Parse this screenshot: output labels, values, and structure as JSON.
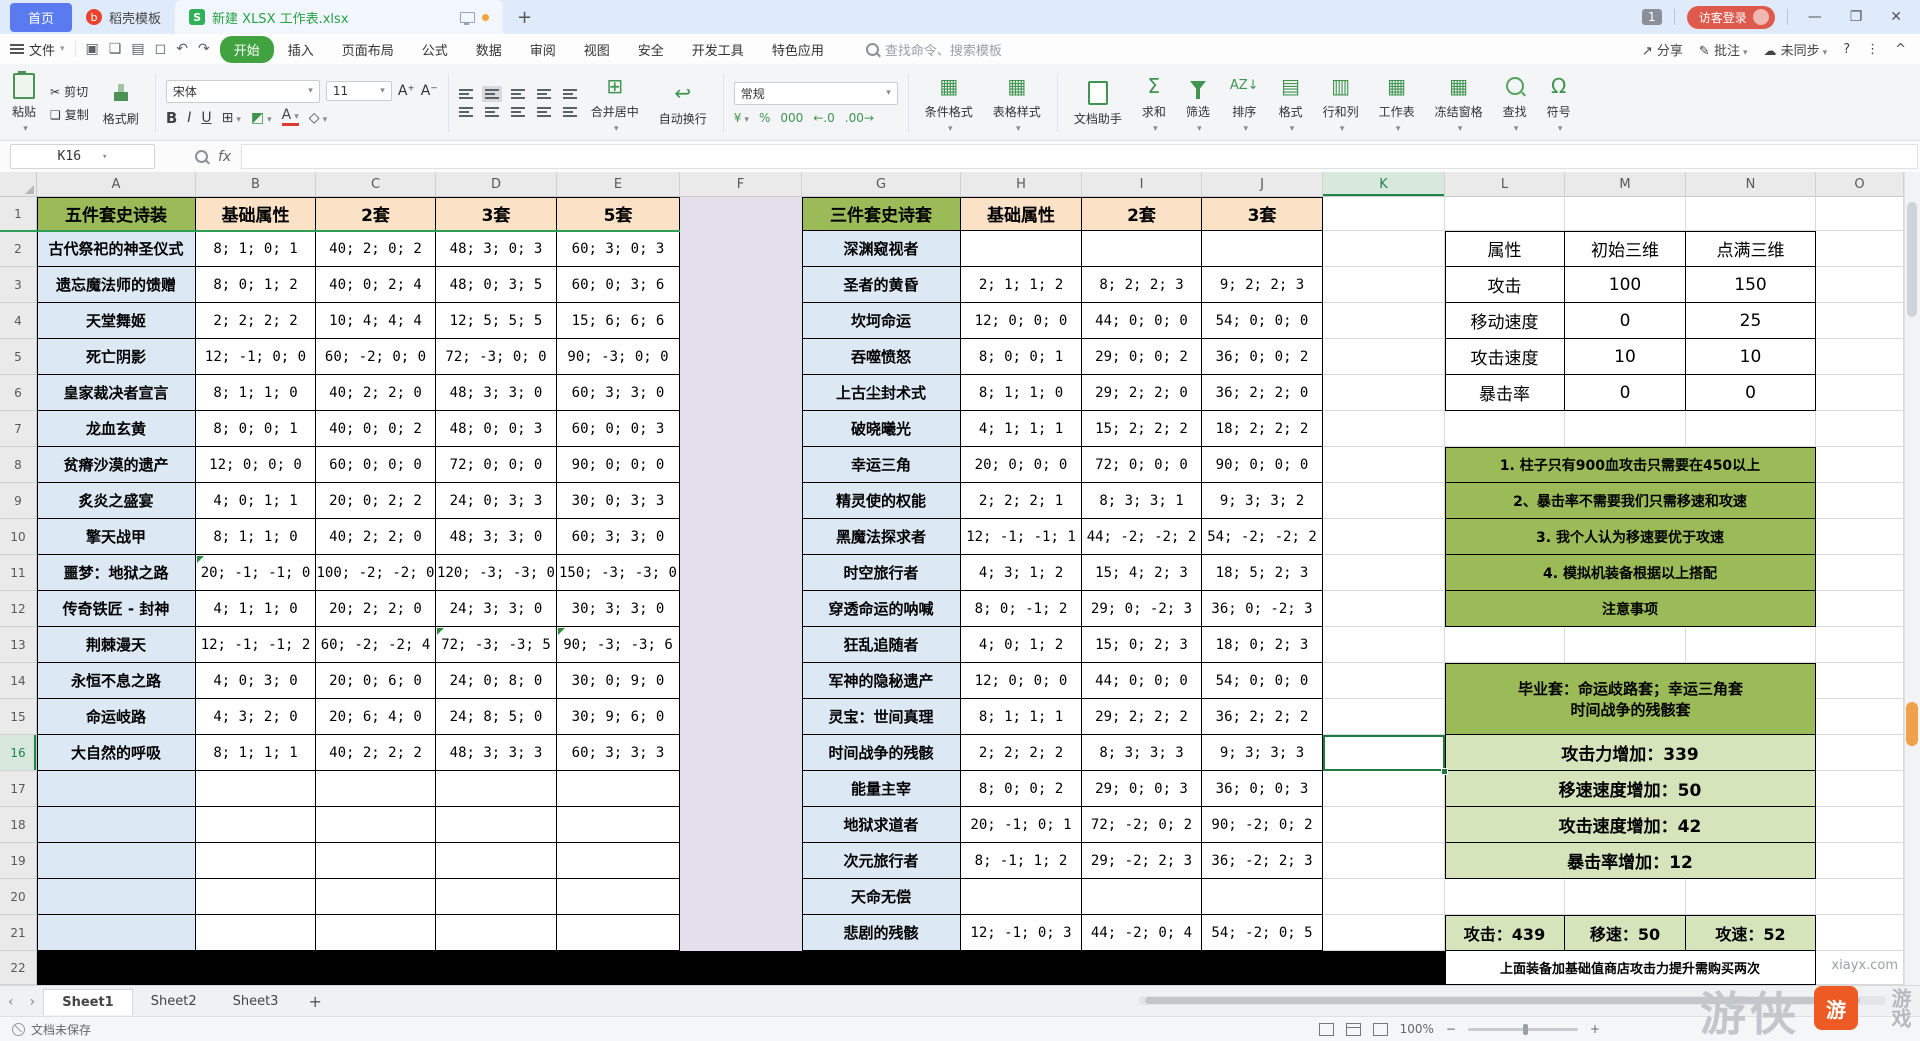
{
  "titlebar": {
    "home_tab": "首页",
    "template_tab": "稻壳模板",
    "template_icon": "b",
    "doc_tab": "新建 XLSX 工作表.xlsx",
    "doc_icon": "S",
    "new_tab": "+",
    "badge": "1",
    "login": "访客登录",
    "minimize": "—",
    "restore": "❐",
    "close": "✕"
  },
  "menubar": {
    "file": "文件",
    "items": [
      "开始",
      "插入",
      "页面布局",
      "公式",
      "数据",
      "审阅",
      "视图",
      "安全",
      "开发工具",
      "特色应用"
    ],
    "active_item": "开始",
    "search_placeholder": "查找命令、搜索模板",
    "share": "分享",
    "comment": "批注",
    "unsynced": "未同步",
    "help": "?",
    "more": "⋮",
    "collapse": "^"
  },
  "ribbon": {
    "paste": "粘贴",
    "cut": "剪切",
    "copy": "复制",
    "format_painter": "格式刷",
    "font_name": "宋体",
    "font_size": "11",
    "font_bigger": "A+",
    "font_smaller": "A-",
    "bold": "B",
    "italic": "I",
    "underline": "U",
    "merge_center": "合并居中",
    "wrap_text": "自动换行",
    "number_format": "常规",
    "currency": "¥",
    "percent": "%",
    "thousands": "000",
    "dec_less": "←.0",
    "dec_more": ".00→",
    "conditional_format": "条件格式",
    "table_style": "表格样式",
    "doc_assistant": "文档助手",
    "sum": "求和",
    "filter": "筛选",
    "sort": "排序",
    "format": "格式",
    "rows_cols": "行和列",
    "worksheet": "工作表",
    "freeze": "冻结窗格",
    "find": "查找",
    "symbol": "符号",
    "sum_glyph": "Σ",
    "symbol_glyph": "Ω",
    "sort_glyph": "AZ↓",
    "border_glyph": "⊞",
    "fill_glyph": "◩",
    "clear_glyph": "◇",
    "merge_glyph": "⊞",
    "wrap_glyph": "↩",
    "style1_glyph": "▦",
    "style2_glyph": "▦",
    "fmt_glyph": "▤",
    "rc_glyph": "▥",
    "ws_glyph": "▦",
    "freeze_glyph": "▦"
  },
  "quick_icons": [
    "▣",
    "❏",
    "▤",
    "◻",
    "↶",
    "↷"
  ],
  "formula_bar": {
    "name_box": "K16",
    "fx": "fx"
  },
  "grid": {
    "column_letters": [
      "A",
      "B",
      "C",
      "D",
      "E",
      "F",
      "G",
      "H",
      "I",
      "J",
      "K",
      "L",
      "M",
      "N",
      "O"
    ],
    "row_numbers": [
      "1",
      "2",
      "3",
      "4",
      "5",
      "6",
      "7",
      "8",
      "9",
      "10",
      "11",
      "12",
      "13",
      "14",
      "15",
      "16",
      "17",
      "18",
      "19",
      "20",
      "21",
      "22"
    ],
    "selected_cell": "K16",
    "selected_col": "K",
    "selected_row": 16
  },
  "left_table": {
    "headers": [
      "五件套史诗装",
      "基础属性",
      "2套",
      "3套",
      "5套"
    ],
    "rows": [
      {
        "name": "古代祭祀的神圣仪式",
        "values": [
          "8; 1; 0; 1",
          "40; 2; 0; 2",
          "48; 3; 0; 3",
          "60; 3; 0; 3"
        ]
      },
      {
        "name": "遗忘魔法师的馈赠",
        "values": [
          "8; 0; 1; 2",
          "40; 0; 2; 4",
          "48; 0; 3; 5",
          "60; 0; 3; 6"
        ]
      },
      {
        "name": "天堂舞姬",
        "values": [
          "2; 2; 2; 2",
          "10; 4; 4; 4",
          "12; 5; 5; 5",
          "15; 6; 6; 6"
        ]
      },
      {
        "name": "死亡阴影",
        "values": [
          "12; -1; 0; 0",
          "60; -2; 0; 0",
          "72; -3; 0; 0",
          "90; -3; 0; 0"
        ]
      },
      {
        "name": "皇家裁决者宣言",
        "values": [
          "8; 1; 1; 0",
          "40; 2; 2; 0",
          "48; 3; 3; 0",
          "60; 3; 3; 0"
        ]
      },
      {
        "name": "龙血玄黄",
        "values": [
          "8; 0; 0; 1",
          "40; 0; 0; 2",
          "48; 0; 0; 3",
          "60; 0; 0; 3"
        ]
      },
      {
        "name": "贫瘠沙漠的遗产",
        "values": [
          "12; 0; 0; 0",
          "60; 0; 0; 0",
          "72; 0; 0; 0",
          "90; 0; 0; 0"
        ]
      },
      {
        "name": "炙炎之盛宴",
        "values": [
          "4; 0; 1; 1",
          "20; 0; 2; 2",
          "24; 0; 3; 3",
          "30; 0; 3; 3"
        ]
      },
      {
        "name": "擎天战甲",
        "values": [
          "8; 1; 1; 0",
          "40; 2; 2; 0",
          "48; 3; 3; 0",
          "60; 3; 3; 0"
        ]
      },
      {
        "name": "噩梦：地狱之路",
        "values": [
          "20; -1; -1; 0",
          "100; -2; -2; 0",
          "120; -3; -3; 0",
          "150; -3; -3; 0"
        ]
      },
      {
        "name": "传奇铁匠 - 封神",
        "values": [
          "4; 1; 1; 0",
          "20; 2; 2; 0",
          "24; 3; 3; 0",
          "30; 3; 3; 0"
        ]
      },
      {
        "name": "荆棘漫天",
        "values": [
          "12; -1; -1; 2",
          "60; -2; -2; 4",
          "72; -3; -3; 5",
          "90; -3; -3; 6"
        ]
      },
      {
        "name": "永恒不息之路",
        "values": [
          "4; 0; 3; 0",
          "20; 0; 6; 0",
          "24; 0; 8; 0",
          "30; 0; 9; 0"
        ]
      },
      {
        "name": "命运岐路",
        "values": [
          "4; 3; 2; 0",
          "20; 6; 4; 0",
          "24; 8; 5; 0",
          "30; 9; 6; 0"
        ]
      },
      {
        "name": "大自然的呼吸",
        "values": [
          "8; 1; 1; 1",
          "40; 2; 2; 2",
          "48; 3; 3; 3",
          "60; 3; 3; 3"
        ]
      },
      {
        "name": "",
        "values": [
          "",
          "",
          "",
          ""
        ]
      },
      {
        "name": "",
        "values": [
          "",
          "",
          "",
          ""
        ]
      },
      {
        "name": "",
        "values": [
          "",
          "",
          "",
          ""
        ]
      },
      {
        "name": "",
        "values": [
          "",
          "",
          "",
          ""
        ]
      },
      {
        "name": "",
        "values": [
          "",
          "",
          "",
          ""
        ]
      }
    ]
  },
  "middle_table": {
    "headers": [
      "三件套史诗套",
      "基础属性",
      "2套",
      "3套"
    ],
    "rows": [
      {
        "name": "深渊窥视者",
        "values": [
          "",
          "",
          ""
        ]
      },
      {
        "name": "圣者的黄昏",
        "values": [
          "2; 1; 1; 2",
          "8; 2; 2; 3",
          "9; 2; 2; 3"
        ]
      },
      {
        "name": "坎坷命运",
        "values": [
          "12; 0; 0; 0",
          "44; 0; 0; 0",
          "54; 0; 0; 0"
        ]
      },
      {
        "name": "吞噬愤怒",
        "values": [
          "8; 0; 0; 1",
          "29; 0; 0; 2",
          "36; 0; 0; 2"
        ]
      },
      {
        "name": "上古尘封术式",
        "values": [
          "8; 1; 1; 0",
          "29; 2; 2; 0",
          "36; 2; 2; 0"
        ]
      },
      {
        "name": "破晓曦光",
        "values": [
          "4; 1; 1; 1",
          "15; 2; 2; 2",
          "18; 2; 2; 2"
        ]
      },
      {
        "name": "幸运三角",
        "values": [
          "20; 0; 0; 0",
          "72; 0; 0; 0",
          "90; 0; 0; 0"
        ]
      },
      {
        "name": "精灵使的权能",
        "values": [
          "2; 2; 2; 1",
          "8; 3; 3; 1",
          "9; 3; 3; 2"
        ]
      },
      {
        "name": "黑魔法探求者",
        "values": [
          "12; -1; -1; 1",
          "44; -2; -2; 2",
          "54; -2; -2; 2"
        ]
      },
      {
        "name": "时空旅行者",
        "values": [
          "4; 3; 1; 2",
          "15; 4; 2; 3",
          "18; 5; 2; 3"
        ]
      },
      {
        "name": "穿透命运的呐喊",
        "values": [
          "8; 0; -1; 2",
          "29; 0; -2; 3",
          "36; 0; -2; 3"
        ]
      },
      {
        "name": "狂乱追随者",
        "values": [
          "4; 0; 1; 2",
          "15; 0; 2; 3",
          "18; 0; 2; 3"
        ]
      },
      {
        "name": "军神的隐秘遗产",
        "values": [
          "12; 0; 0; 0",
          "44; 0; 0; 0",
          "54; 0; 0; 0"
        ]
      },
      {
        "name": "灵宝：世间真理",
        "values": [
          "8; 1; 1; 1",
          "29; 2; 2; 2",
          "36; 2; 2; 2"
        ]
      },
      {
        "name": "时间战争的残骸",
        "values": [
          "2; 2; 2; 2",
          "8; 3; 3; 3",
          "9; 3; 3; 3"
        ]
      },
      {
        "name": "能量主宰",
        "values": [
          "8; 0; 0; 2",
          "29; 0; 0; 3",
          "36; 0; 0; 3"
        ]
      },
      {
        "name": "地狱求道者",
        "values": [
          "20; -1; 0; 1",
          "72; -2; 0; 2",
          "90; -2; 0; 2"
        ]
      },
      {
        "name": "次元旅行者",
        "values": [
          "8; -1; 1; 2",
          "29; -2; 2; 3",
          "36; -2; 2; 3"
        ]
      },
      {
        "name": "天命无偿",
        "values": [
          "",
          "",
          ""
        ]
      },
      {
        "name": "悲剧的残骸",
        "values": [
          "12; -1; 0; 3",
          "44; -2; 0; 4",
          "54; -2; 0; 5"
        ]
      }
    ]
  },
  "attr_table": {
    "headers": [
      "属性",
      "初始三维",
      "点满三维"
    ],
    "rows": [
      [
        "攻击",
        "100",
        "150"
      ],
      [
        "移动速度",
        "0",
        "25"
      ],
      [
        "攻击速度",
        "10",
        "10"
      ],
      [
        "暴击率",
        "0",
        "0"
      ]
    ]
  },
  "notes": [
    "1. 柱子只有900血攻击只需要在450以上",
    "2、暴击率不需要我们只需移速和攻速",
    "3. 我个人认为移速要优于攻速",
    "4. 模拟机装备根据以上搭配",
    "注意事项"
  ],
  "graduation": {
    "line1": "毕业套：命运歧路套；幸运三角套",
    "line2": "时间战争的残骸套"
  },
  "bonuses": [
    "攻击力增加：339",
    "移速速度增加：50",
    "攻击速度增加：42",
    "暴击率增加：12"
  ],
  "totals": [
    "攻击：439",
    "移速：50",
    "攻速：52"
  ],
  "bottom_note": "上面装备加基础值商店攻击力提升需购买两次",
  "sheet_tabs": {
    "tabs": [
      "Sheet1",
      "Sheet2",
      "Sheet3"
    ],
    "active": "Sheet1",
    "add": "+",
    "nav_left": "‹",
    "nav_right": "›"
  },
  "statusbar": {
    "doc_status": "文档未保存",
    "zoom_level": "100%",
    "zoom_out": "−",
    "zoom_in": "+"
  },
  "watermark": {
    "site": "xiayx.com",
    "big": "游侠",
    "badge": "游",
    "tail": "游戏"
  }
}
